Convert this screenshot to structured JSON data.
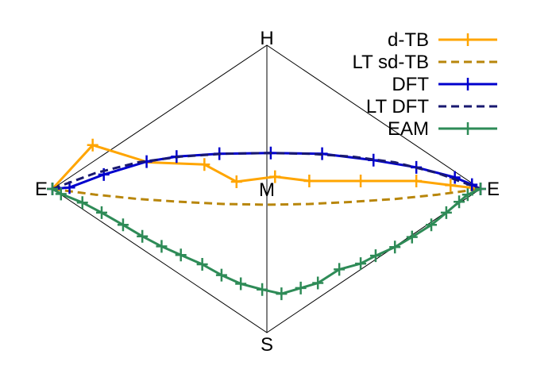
{
  "chart_data": {
    "type": "line",
    "vertex_labels": {
      "left": "E",
      "right": "E",
      "top": "H",
      "bottom": "S",
      "center": "M"
    },
    "xlim": [
      0,
      1
    ],
    "ylim": [
      -1,
      1
    ],
    "grid": false,
    "legend_position": "top-right",
    "series": [
      {
        "name": "d-TB",
        "color": "#ffa500",
        "line_style": "solid",
        "markers": true,
        "x": [
          0,
          0.094,
          0.224,
          0.355,
          0.43,
          0.52,
          0.6,
          0.72,
          0.85,
          1.0
        ],
        "y": [
          0,
          0.305,
          0.185,
          0.17,
          0.05,
          0.085,
          0.055,
          0.055,
          0.055,
          0
        ],
        "marker_x": [
          0,
          0.094,
          0.355,
          0.43,
          0.52,
          0.6,
          0.72,
          0.85,
          0.93,
          1.0
        ]
      },
      {
        "name": "LT sd-TB",
        "color": "#b8860b",
        "line_style": "dashed",
        "markers": false,
        "x": [
          0,
          0.1,
          0.2,
          0.3,
          0.4,
          0.5,
          0.6,
          0.7,
          0.8,
          0.9,
          1.0
        ],
        "y": [
          0,
          -0.04,
          -0.07,
          -0.09,
          -0.105,
          -0.11,
          -0.105,
          -0.09,
          -0.07,
          -0.04,
          0
        ]
      },
      {
        "name": "DFT",
        "color": "#0000cd",
        "line_style": "solid",
        "markers": true,
        "x": [
          0,
          0.04,
          0.12,
          0.22,
          0.29,
          0.39,
          0.51,
          0.63,
          0.75,
          0.85,
          0.94,
          0.98,
          1.0
        ],
        "y": [
          0,
          0.01,
          0.1,
          0.19,
          0.225,
          0.245,
          0.25,
          0.245,
          0.2,
          0.15,
          0.08,
          0.03,
          0
        ]
      },
      {
        "name": "LT DFT",
        "color": "#191970",
        "line_style": "dashed",
        "markers": false,
        "x": [
          0,
          0.1,
          0.2,
          0.3,
          0.4,
          0.5,
          0.6,
          0.7,
          0.8,
          0.9,
          1.0
        ],
        "y": [
          0,
          0.11,
          0.185,
          0.225,
          0.245,
          0.25,
          0.245,
          0.225,
          0.185,
          0.11,
          0
        ]
      },
      {
        "name": "EAM",
        "color": "#2e8b57",
        "line_style": "solid",
        "markers": true,
        "x": [
          0,
          0.02,
          0.07,
          0.115,
          0.165,
          0.21,
          0.255,
          0.3,
          0.35,
          0.395,
          0.44,
          0.49,
          0.535,
          0.58,
          0.62,
          0.67,
          0.72,
          0.755,
          0.8,
          0.84,
          0.885,
          0.92,
          0.95,
          0.97,
          1.0
        ],
        "y": [
          0,
          -0.035,
          -0.095,
          -0.165,
          -0.25,
          -0.33,
          -0.4,
          -0.46,
          -0.525,
          -0.6,
          -0.66,
          -0.7,
          -0.73,
          -0.69,
          -0.655,
          -0.56,
          -0.52,
          -0.465,
          -0.405,
          -0.335,
          -0.25,
          -0.165,
          -0.09,
          -0.04,
          0
        ]
      }
    ]
  }
}
